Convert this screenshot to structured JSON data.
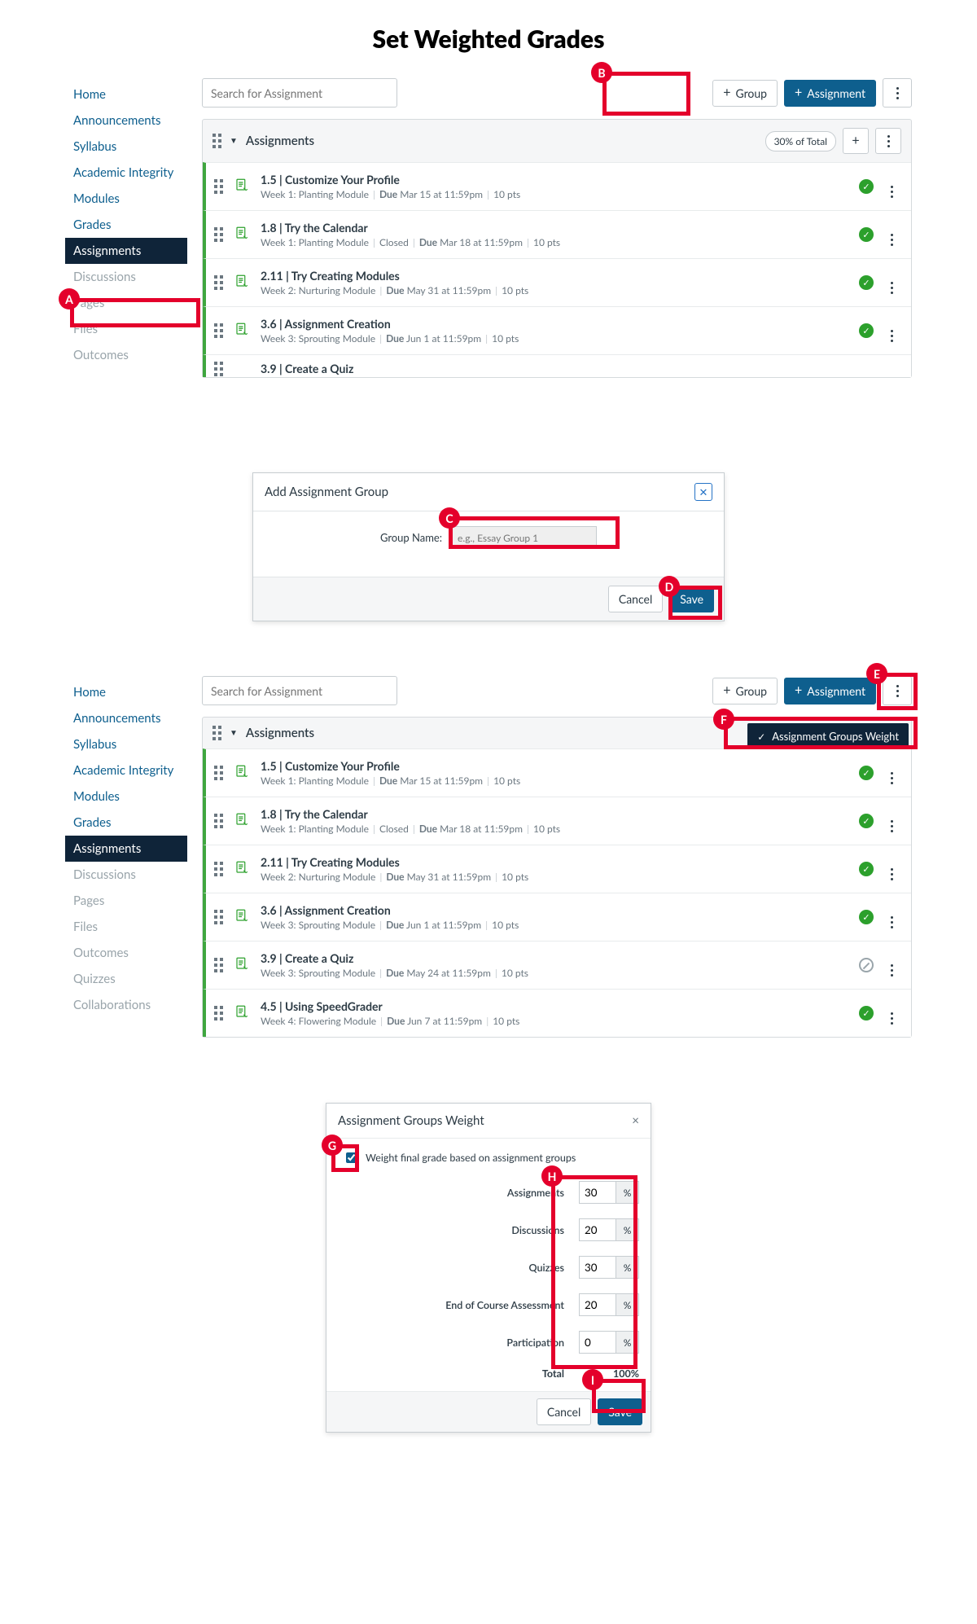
{
  "title": "Set Weighted Grades",
  "callouts": {
    "A": "A",
    "B": "B",
    "C": "C",
    "D": "D",
    "E": "E",
    "F": "F",
    "G": "G",
    "H": "H",
    "I": "I"
  },
  "nav": {
    "items": [
      {
        "label": "Home",
        "muted": false
      },
      {
        "label": "Announcements",
        "muted": false
      },
      {
        "label": "Syllabus",
        "muted": false
      },
      {
        "label": "Academic Integrity",
        "muted": false
      },
      {
        "label": "Modules",
        "muted": false
      },
      {
        "label": "Grades",
        "muted": false
      },
      {
        "label": "Assignments",
        "muted": false,
        "active": true
      },
      {
        "label": "Discussions",
        "muted": true
      },
      {
        "label": "Pages",
        "muted": true
      },
      {
        "label": "Files",
        "muted": true
      },
      {
        "label": "Outcomes",
        "muted": true
      }
    ],
    "items2_extra": [
      {
        "label": "Quizzes",
        "muted": true
      },
      {
        "label": "Collaborations",
        "muted": true
      }
    ]
  },
  "search": {
    "placeholder": "Search for Assignment"
  },
  "buttons": {
    "group": "Group",
    "assignment": "Assignment",
    "cancel": "Cancel",
    "save": "Save"
  },
  "group_header": {
    "title": "Assignments",
    "weight_pill": "30% of Total"
  },
  "assignments": [
    {
      "name": "1.5 | Customize Your Profile",
      "module": "Week 1: Planting Module",
      "extra": "",
      "due": "Due Mar 15 at 11:59pm",
      "pts": "10 pts",
      "ok": true
    },
    {
      "name": "1.8 | Try the Calendar",
      "module": "Week 1: Planting Module",
      "extra": "Closed",
      "due": "Due Mar 18 at 11:59pm",
      "pts": "10 pts",
      "ok": true
    },
    {
      "name": "2.11 | Try Creating Modules",
      "module": "Week 2: Nurturing Module",
      "extra": "",
      "due": "Due May 31 at 11:59pm",
      "pts": "10 pts",
      "ok": true
    },
    {
      "name": "3.6 | Assignment Creation",
      "module": "Week 3: Sprouting Module",
      "extra": "",
      "due": "Due Jun 1 at 11:59pm",
      "pts": "10 pts",
      "ok": true
    }
  ],
  "cutoff_row": {
    "name": "3.9 | Create a Quiz"
  },
  "assignments2": [
    {
      "name": "1.5 | Customize Your Profile",
      "module": "Week 1: Planting Module",
      "extra": "",
      "due": "Due Mar 15 at 11:59pm",
      "pts": "10 pts",
      "ok": true
    },
    {
      "name": "1.8 | Try the Calendar",
      "module": "Week 1: Planting Module",
      "extra": "Closed",
      "due": "Due Mar 18 at 11:59pm",
      "pts": "10 pts",
      "ok": true
    },
    {
      "name": "2.11 | Try Creating Modules",
      "module": "Week 2: Nurturing Module",
      "extra": "",
      "due": "Due May 31 at 11:59pm",
      "pts": "10 pts",
      "ok": true
    },
    {
      "name": "3.6 | Assignment Creation",
      "module": "Week 3: Sprouting Module",
      "extra": "",
      "due": "Due Jun 1 at 11:59pm",
      "pts": "10 pts",
      "ok": true
    },
    {
      "name": "3.9 | Create a Quiz",
      "module": "Week 3: Sprouting Module",
      "extra": "",
      "due": "Due May 24 at 11:59pm",
      "pts": "10 pts",
      "ok": false
    },
    {
      "name": "4.5 | Using SpeedGrader",
      "module": "Week 4: Flowering Module",
      "extra": "",
      "due": "Due Jun 7 at 11:59pm",
      "pts": "10 pts",
      "ok": true
    }
  ],
  "add_group_modal": {
    "title": "Add Assignment Group",
    "label": "Group Name:",
    "placeholder": "e.g., Essay Group 1"
  },
  "popover": {
    "label": "Assignment Groups Weight"
  },
  "weights_modal": {
    "title": "Assignment Groups Weight",
    "checkbox": "Weight final grade based on assignment groups",
    "pct": "%",
    "rows": [
      {
        "label": "Assignments",
        "value": "30"
      },
      {
        "label": "Discussions",
        "value": "20"
      },
      {
        "label": "Quizzes",
        "value": "30"
      },
      {
        "label": "End of Course Assessment",
        "value": "20"
      },
      {
        "label": "Participation",
        "value": "0"
      }
    ],
    "total_label": "Total",
    "total_value": "100%"
  },
  "colors": {
    "accent": "#0e5f8e",
    "nav_active": "#0f2439",
    "highlight": "#e4002b",
    "green": "#2ca02c"
  }
}
